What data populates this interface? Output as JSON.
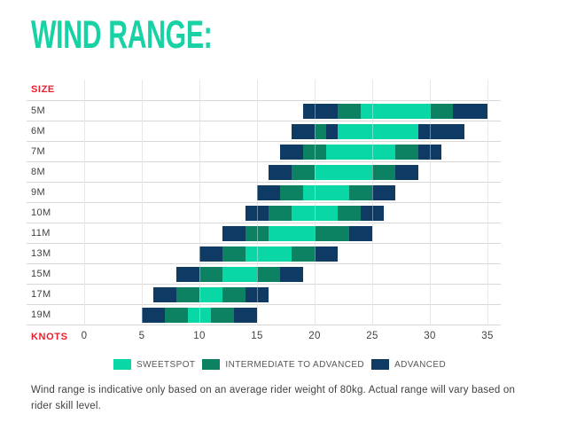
{
  "title": "WIND RANGE:",
  "axis": {
    "size_label": "SIZE",
    "knots_label": "KNOTS",
    "ticks": [
      0,
      5,
      10,
      15,
      20,
      25,
      30,
      35
    ]
  },
  "colors": {
    "sweetspot": "#09d7a5",
    "intermediate": "#0d8263",
    "advanced": "#0f3a64",
    "title": "#18d2a5",
    "axis_red": "#e91d2c",
    "grid": "#d8d8d8",
    "grid_over_bar": "rgba(255,255,255,0.38)",
    "label_text": "#414042",
    "legend_text": "#55565a"
  },
  "legend": [
    {
      "label": "SWEETSPOT",
      "band": "sweetspot"
    },
    {
      "label": "INTERMEDIATE TO ADVANCED",
      "band": "intermediate"
    },
    {
      "label": "ADVANCED",
      "band": "advanced"
    }
  ],
  "footnote": "Wind range is indicative only based on an average rider weight of 80kg. Actual range will vary based on\nrider skill level.",
  "chart_data": {
    "type": "bar",
    "orientation": "horizontal-stacked-range",
    "title": "WIND RANGE:",
    "xlabel": "KNOTS",
    "ylabel": "SIZE",
    "xlim": [
      0,
      35.8
    ],
    "x_ticks": [
      0,
      5,
      10,
      15,
      20,
      25,
      30,
      35
    ],
    "grid": true,
    "legend_position": "bottom",
    "bands": [
      "sweetspot",
      "intermediate",
      "advanced"
    ],
    "rows": [
      {
        "size": "5M",
        "range": [
          19,
          35
        ],
        "segments": [
          {
            "band": "advanced",
            "from": 19,
            "to": 22
          },
          {
            "band": "intermediate",
            "from": 22,
            "to": 24
          },
          {
            "band": "sweetspot",
            "from": 24,
            "to": 30
          },
          {
            "band": "intermediate",
            "from": 30,
            "to": 32
          },
          {
            "band": "advanced",
            "from": 32,
            "to": 35
          }
        ]
      },
      {
        "size": "6M",
        "range": [
          18,
          33
        ],
        "segments": [
          {
            "band": "advanced",
            "from": 18,
            "to": 20
          },
          {
            "band": "intermediate",
            "from": 20,
            "to": 21
          },
          {
            "band": "advanced",
            "from": 21,
            "to": 22
          },
          {
            "band": "sweetspot",
            "from": 22,
            "to": 29
          },
          {
            "band": "advanced",
            "from": 29,
            "to": 33
          }
        ]
      },
      {
        "size": "7M",
        "range": [
          17,
          31
        ],
        "segments": [
          {
            "band": "advanced",
            "from": 17,
            "to": 19
          },
          {
            "band": "intermediate",
            "from": 19,
            "to": 21
          },
          {
            "band": "sweetspot",
            "from": 21,
            "to": 27
          },
          {
            "band": "intermediate",
            "from": 27,
            "to": 29
          },
          {
            "band": "advanced",
            "from": 29,
            "to": 31
          }
        ]
      },
      {
        "size": "8M",
        "range": [
          16,
          29
        ],
        "segments": [
          {
            "band": "advanced",
            "from": 16,
            "to": 18
          },
          {
            "band": "intermediate",
            "from": 18,
            "to": 20
          },
          {
            "band": "sweetspot",
            "from": 20,
            "to": 25
          },
          {
            "band": "intermediate",
            "from": 25,
            "to": 27
          },
          {
            "band": "advanced",
            "from": 27,
            "to": 29
          }
        ]
      },
      {
        "size": "9M",
        "range": [
          15,
          27
        ],
        "segments": [
          {
            "band": "advanced",
            "from": 15,
            "to": 17
          },
          {
            "band": "intermediate",
            "from": 17,
            "to": 19
          },
          {
            "band": "sweetspot",
            "from": 19,
            "to": 23
          },
          {
            "band": "intermediate",
            "from": 23,
            "to": 25
          },
          {
            "band": "advanced",
            "from": 25,
            "to": 27
          }
        ]
      },
      {
        "size": "10M",
        "range": [
          14,
          26
        ],
        "segments": [
          {
            "band": "advanced",
            "from": 14,
            "to": 16
          },
          {
            "band": "intermediate",
            "from": 16,
            "to": 18
          },
          {
            "band": "sweetspot",
            "from": 18,
            "to": 22
          },
          {
            "band": "intermediate",
            "from": 22,
            "to": 24
          },
          {
            "band": "advanced",
            "from": 24,
            "to": 26
          }
        ]
      },
      {
        "size": "11M",
        "range": [
          12,
          25
        ],
        "segments": [
          {
            "band": "advanced",
            "from": 12,
            "to": 14
          },
          {
            "band": "intermediate",
            "from": 14,
            "to": 16
          },
          {
            "band": "sweetspot",
            "from": 16,
            "to": 20
          },
          {
            "band": "intermediate",
            "from": 20,
            "to": 23
          },
          {
            "band": "advanced",
            "from": 23,
            "to": 25
          }
        ]
      },
      {
        "size": "13M",
        "range": [
          10,
          22
        ],
        "segments": [
          {
            "band": "advanced",
            "from": 10,
            "to": 12
          },
          {
            "band": "intermediate",
            "from": 12,
            "to": 14
          },
          {
            "band": "sweetspot",
            "from": 14,
            "to": 18
          },
          {
            "band": "intermediate",
            "from": 18,
            "to": 20
          },
          {
            "band": "advanced",
            "from": 20,
            "to": 22
          }
        ]
      },
      {
        "size": "15M",
        "range": [
          8,
          19
        ],
        "segments": [
          {
            "band": "advanced",
            "from": 8,
            "to": 10
          },
          {
            "band": "intermediate",
            "from": 10,
            "to": 12
          },
          {
            "band": "sweetspot",
            "from": 12,
            "to": 15
          },
          {
            "band": "intermediate",
            "from": 15,
            "to": 17
          },
          {
            "band": "advanced",
            "from": 17,
            "to": 19
          }
        ]
      },
      {
        "size": "17M",
        "range": [
          6,
          16
        ],
        "segments": [
          {
            "band": "advanced",
            "from": 6,
            "to": 8
          },
          {
            "band": "intermediate",
            "from": 8,
            "to": 10
          },
          {
            "band": "sweetspot",
            "from": 10,
            "to": 12
          },
          {
            "band": "intermediate",
            "from": 12,
            "to": 14
          },
          {
            "band": "advanced",
            "from": 14,
            "to": 16
          }
        ]
      },
      {
        "size": "19M",
        "range": [
          5,
          15
        ],
        "segments": [
          {
            "band": "advanced",
            "from": 5,
            "to": 7
          },
          {
            "band": "intermediate",
            "from": 7,
            "to": 9
          },
          {
            "band": "sweetspot",
            "from": 9,
            "to": 11
          },
          {
            "band": "intermediate",
            "from": 11,
            "to": 13
          },
          {
            "band": "advanced",
            "from": 13,
            "to": 15
          }
        ]
      }
    ]
  }
}
